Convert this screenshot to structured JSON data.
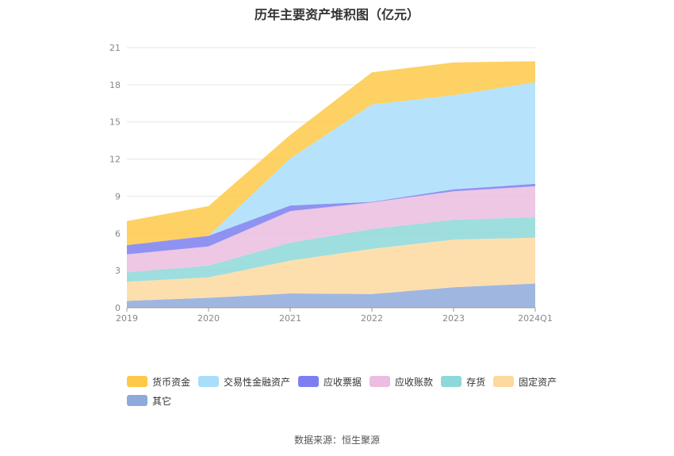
{
  "chart_data": {
    "type": "area",
    "title": "历年主要资产堆积图（亿元）",
    "stacked": true,
    "categories": [
      "2019",
      "2020",
      "2021",
      "2022",
      "2023",
      "2024Q1"
    ],
    "ylim": [
      0,
      21
    ],
    "yticks": [
      0,
      3,
      6,
      9,
      12,
      15,
      18,
      21
    ],
    "grid": true,
    "legend_position": "bottom",
    "series": [
      {
        "name": "其它",
        "color": "#8eaadb",
        "values": [
          0.55,
          0.8,
          1.15,
          1.1,
          1.65,
          1.95
        ]
      },
      {
        "name": "固定资产",
        "color": "#fdd9a0",
        "values": [
          1.55,
          1.65,
          2.65,
          3.65,
          3.85,
          3.7
        ]
      },
      {
        "name": "存货",
        "color": "#8dd8d8",
        "values": [
          0.75,
          0.95,
          1.45,
          1.6,
          1.6,
          1.65
        ]
      },
      {
        "name": "应收账款",
        "color": "#ebbde0",
        "values": [
          1.45,
          1.55,
          2.55,
          2.15,
          2.3,
          2.5
        ]
      },
      {
        "name": "应收票据",
        "color": "#7d7ff0",
        "values": [
          0.75,
          0.85,
          0.45,
          0.05,
          0.15,
          0.2
        ]
      },
      {
        "name": "交易性金融资产",
        "color": "#a9defa",
        "values": [
          0,
          0,
          3.8,
          7.85,
          7.6,
          8.2
        ]
      },
      {
        "name": "货币资金",
        "color": "#fdc948",
        "values": [
          1.95,
          2.4,
          1.9,
          2.6,
          2.65,
          1.7
        ]
      }
    ]
  },
  "legend_order": [
    6,
    5,
    4,
    3,
    2,
    1,
    0
  ],
  "source": "数据来源：恒生聚源"
}
